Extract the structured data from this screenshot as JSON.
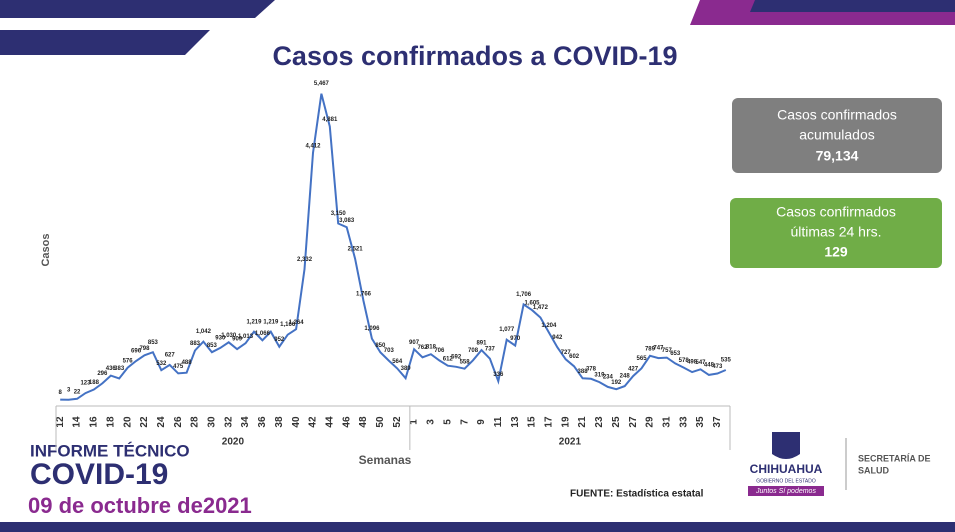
{
  "chart_data": {
    "type": "line",
    "title": "Casos confirmados a COVID-19",
    "x_label": "Semanas",
    "y_label": "Casos",
    "categories": [
      "12",
      null,
      "14",
      null,
      "16",
      null,
      "18",
      null,
      "20",
      null,
      "22",
      null,
      "24",
      null,
      "26",
      null,
      "28",
      null,
      "30",
      null,
      "32",
      null,
      "34",
      null,
      "36",
      null,
      "38",
      null,
      "40",
      null,
      "42",
      null,
      "44",
      null,
      "46",
      null,
      "48",
      null,
      "50",
      null,
      "52",
      null,
      "1",
      null,
      "3",
      null,
      "5",
      null,
      "7",
      null,
      "9",
      null,
      "11",
      null,
      "13",
      null,
      "15",
      null,
      "17",
      null,
      "19",
      null,
      "21",
      null,
      "23",
      null,
      "25",
      null,
      "27",
      null,
      "29",
      null,
      "31",
      null,
      "33",
      null,
      "35",
      null,
      "37",
      null
    ],
    "groups": [
      {
        "label": "2020",
        "count": 42
      },
      {
        "label": "2021",
        "count": 38
      }
    ],
    "series": [
      {
        "name": "Casos",
        "color": "#4472c4",
        "values": [
          8,
          3,
          22,
          123,
          188,
          296,
          436,
          383,
          576,
          696,
          798,
          853,
          532,
          627,
          475,
          488,
          883,
          1042,
          853,
          930,
          1030,
          909,
          1013,
          1219,
          1066,
          1219,
          952,
          1166,
          1264,
          2332,
          4412,
          5467,
          4881,
          3150,
          3083,
          2521,
          1766,
          1096,
          850,
          703,
          564,
          389,
          907,
          762,
          818,
          706,
          612,
          592,
          558,
          708,
          891,
          737,
          336,
          1077,
          970,
          1706,
          1605,
          1472,
          1204,
          942,
          727,
          602,
          388,
          378,
          319,
          234,
          192,
          248,
          427,
          565,
          789,
          747,
          757,
          653,
          578,
          498,
          547,
          448,
          473,
          535
        ],
        "value_labels": [
          "8",
          "3",
          "22",
          "123",
          "188",
          "296",
          "436",
          "383",
          "576",
          "696",
          "798",
          "853",
          "532",
          "627",
          "475",
          "488",
          "883",
          "1,042",
          "853",
          "930",
          "1,030",
          "909",
          "1,013",
          "1,219",
          "1,066",
          "1,219",
          "952",
          "1,166",
          "1,264",
          "2,332",
          "4,412",
          "5,467",
          "4,881",
          "3,150",
          "3,083",
          "2,521",
          "1,766",
          "1,096",
          "850",
          "703",
          "564",
          "389",
          "907",
          "762",
          "818",
          "706",
          "612",
          "592",
          "558",
          "708",
          "891",
          "737",
          "336",
          "1,077",
          "970",
          "1,706",
          "1,605",
          "1,472",
          "1,204",
          "942",
          "727",
          "602",
          "388",
          "378",
          "319",
          "234",
          "192",
          "248",
          "427",
          "565",
          "789",
          "747",
          "757",
          "653",
          "578",
          "498",
          "547",
          "448",
          "473",
          "535"
        ]
      }
    ],
    "ylim": [
      0,
      5800
    ]
  },
  "header": {
    "report": "INFORME TÉCNICO",
    "topic": "COVID-19",
    "date": "09 de octubre de2021"
  },
  "cards": [
    {
      "line1": "Casos confirmados",
      "line2": "acumulados",
      "value": "79,134"
    },
    {
      "line1": "Casos confirmados",
      "line2": "últimas 24 hrs.",
      "value": "129"
    }
  ],
  "source": "FUENTE: Estadística estatal",
  "logo": {
    "name": "CHIHUAHUA",
    "sub": "GOBIERNO DEL ESTADO",
    "slogan": "Juntos Sí podemos",
    "dept1": "SECRETARÍA DE",
    "dept2": "SALUD"
  }
}
